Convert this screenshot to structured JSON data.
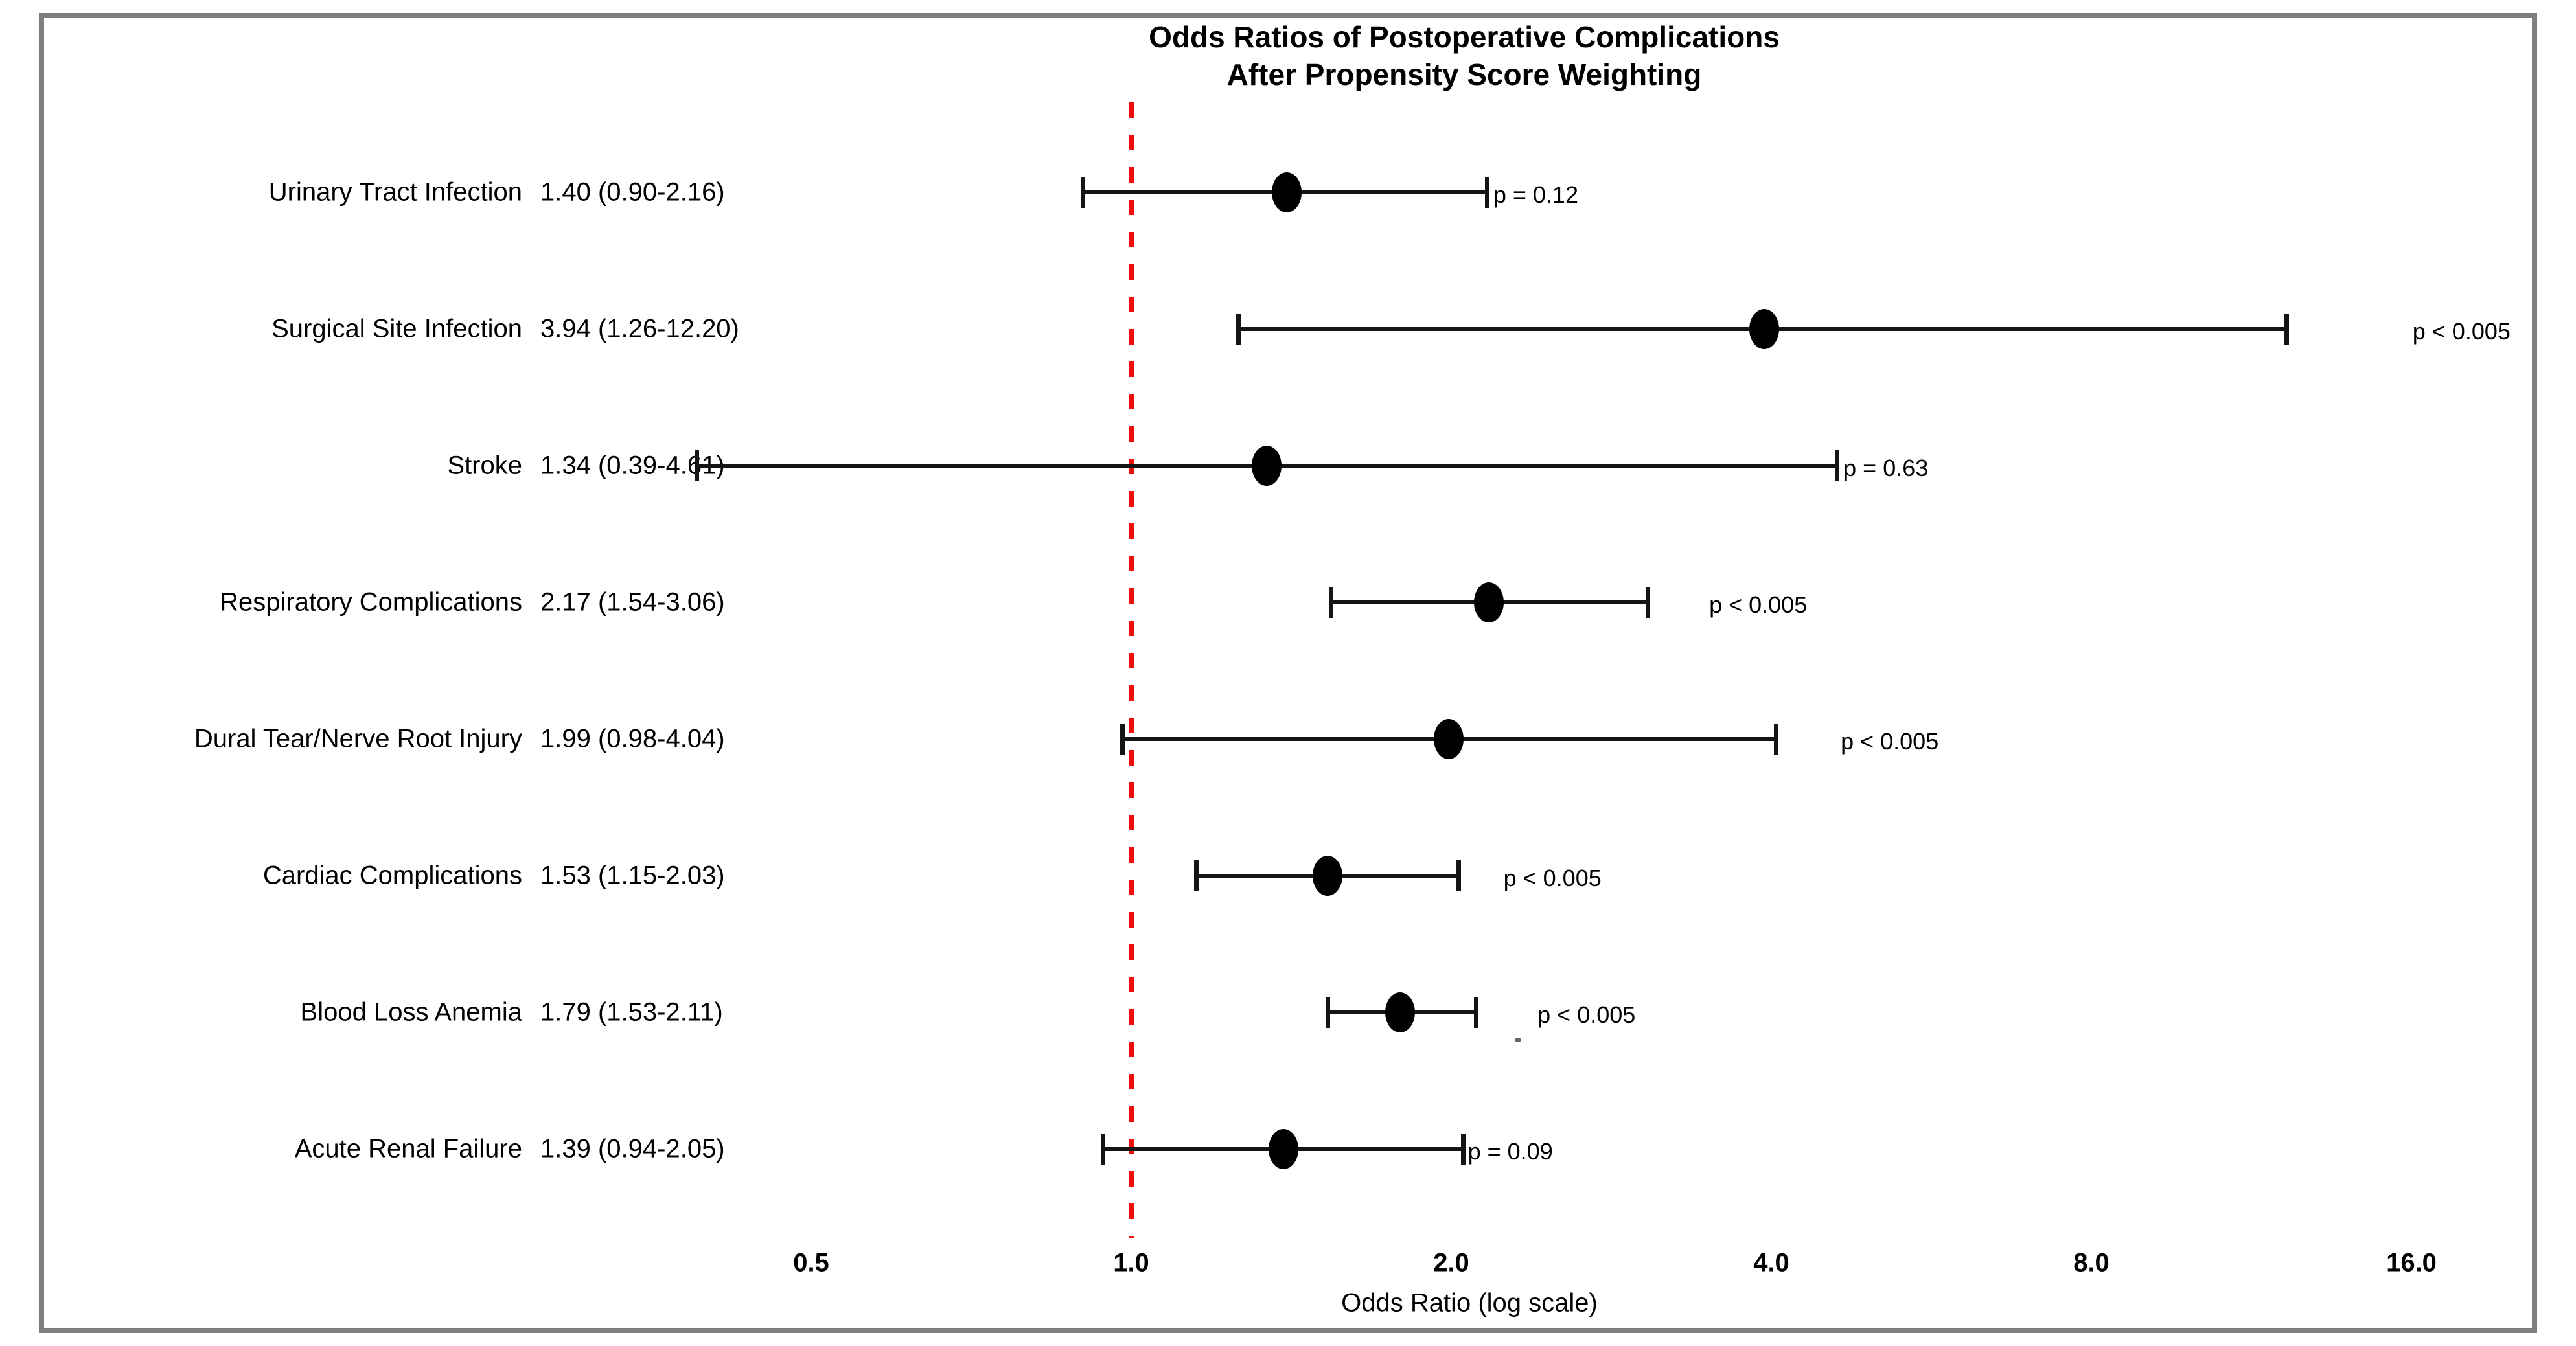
{
  "page": {
    "background": "#ffffff",
    "frame_border_color": "#7e7e7e"
  },
  "chart_data": {
    "type": "forest",
    "title_line1": "Odds Ratios of Postoperative Complications",
    "title_line2": "After Propensity Score Weighting",
    "xlabel": "Odds Ratio (log scale)",
    "x_scale": "log",
    "x_ticks": [
      0.5,
      1.0,
      2.0,
      4.0,
      8.0,
      16.0
    ],
    "x_tick_labels": [
      "0.5",
      "1.0",
      "2.0",
      "4.0",
      "8.0",
      "16.0"
    ],
    "reference_line": {
      "value": 1.0,
      "color": "#f20d0d",
      "style": "dashed"
    },
    "marker_color": "#000000",
    "rows": [
      {
        "label": "Urinary Tract Infection",
        "estimate_text": "1.40 (0.90-2.16)",
        "or": 1.4,
        "ci_low": 0.9,
        "ci_high": 2.16,
        "p_text": "p = 0.12",
        "p_dx": 10
      },
      {
        "label": "Surgical Site Infection",
        "estimate_text": "3.94 (1.26-12.20)",
        "or": 3.94,
        "ci_low": 1.26,
        "ci_high": 12.2,
        "p_text": "p < 0.005",
        "p_dx": 195
      },
      {
        "label": "Stroke",
        "estimate_text": "1.34 (0.39-4.61)",
        "or": 1.34,
        "ci_low": 0.39,
        "ci_high": 4.61,
        "p_text": "p = 0.63",
        "p_dx": 10
      },
      {
        "label": "Respiratory Complications",
        "estimate_text": "2.17 (1.54-3.06)",
        "or": 2.17,
        "ci_low": 1.54,
        "ci_high": 3.06,
        "p_text": "p < 0.005",
        "p_dx": 95
      },
      {
        "label": "Dural Tear/Nerve Root Injury",
        "estimate_text": "1.99 (0.98-4.04)",
        "or": 1.99,
        "ci_low": 0.98,
        "ci_high": 4.04,
        "p_text": "p < 0.005",
        "p_dx": 100
      },
      {
        "label": "Cardiac Complications",
        "estimate_text": "1.53 (1.15-2.03)",
        "or": 1.53,
        "ci_low": 1.15,
        "ci_high": 2.03,
        "p_text": "p < 0.005",
        "p_dx": 70
      },
      {
        "label": "Blood Loss Anemia",
        "estimate_text": "1.79 (1.53-2.11)",
        "or": 1.79,
        "ci_low": 1.53,
        "ci_high": 2.11,
        "p_text": "p < 0.005",
        "p_dx": 95
      },
      {
        "label": "Acute Renal Failure",
        "estimate_text": "1.39 (0.94-2.05)",
        "or": 1.39,
        "ci_low": 0.94,
        "ci_high": 2.05,
        "p_text": "p = 0.09",
        "p_dx": 8
      }
    ]
  }
}
